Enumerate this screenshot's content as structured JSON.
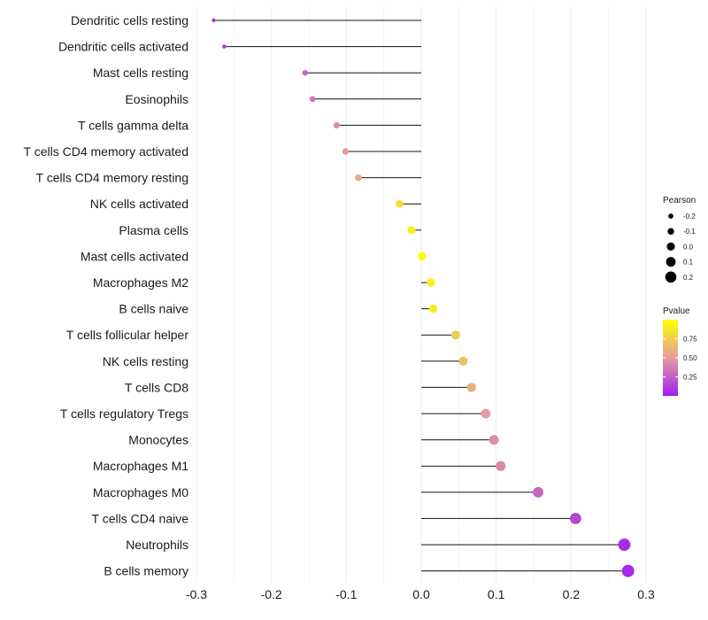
{
  "chart_data": {
    "type": "lollipop",
    "title": "",
    "xlabel": "",
    "ylabel": "",
    "xlim": [
      -0.3,
      0.3
    ],
    "x_ticks": [
      -0.3,
      -0.2,
      -0.1,
      0.0,
      0.1,
      0.2,
      0.3
    ],
    "x_tick_labels": [
      "-0.3",
      "-0.2",
      "-0.1",
      "0.0",
      "0.1",
      "0.2",
      "0.3"
    ],
    "grid": "vertical",
    "categories": [
      "Dendritic cells resting",
      "Dendritic cells activated",
      "Mast cells resting",
      "Eosinophils",
      "T cells gamma delta",
      "T cells CD4 memory activated",
      "T cells CD4 memory resting",
      "NK cells activated",
      "Plasma cells",
      "Mast cells activated",
      "Macrophages M2",
      "B cells naive",
      "T cells follicular helper",
      "NK cells resting",
      "T cells CD8",
      "T cells regulatory  Tregs ",
      "Monocytes",
      "Macrophages M1",
      "Macrophages M0",
      "T cells CD4 naive",
      "Neutrophils",
      "B cells memory"
    ],
    "series": [
      {
        "name": "Pearson",
        "values": [
          -0.277,
          -0.263,
          -0.155,
          -0.145,
          -0.113,
          -0.101,
          -0.084,
          -0.029,
          -0.013,
          0.001,
          0.013,
          0.016,
          0.046,
          0.056,
          0.067,
          0.086,
          0.097,
          0.106,
          0.156,
          0.206,
          0.271,
          0.276
        ]
      },
      {
        "name": "Pvalue",
        "values": [
          0.09,
          0.12,
          0.3,
          0.35,
          0.45,
          0.5,
          0.58,
          0.82,
          0.92,
          0.99,
          0.92,
          0.9,
          0.73,
          0.68,
          0.6,
          0.5,
          0.45,
          0.42,
          0.28,
          0.15,
          0.05,
          0.04
        ]
      }
    ],
    "legend": {
      "position": "right",
      "size_title": "Pearson",
      "size_values": [
        -0.2,
        -0.1,
        0.0,
        0.1,
        0.2
      ],
      "size_labels": [
        "-0.2",
        "-0.1",
        "0.0",
        "0.1",
        "0.2"
      ],
      "color_title": "Pvalue",
      "color_ticks": [
        0.25,
        0.5,
        0.75
      ],
      "color_tick_labels": [
        "0.25",
        "0.50",
        "0.75"
      ],
      "color_range": [
        0.0,
        1.0
      ],
      "color_low": "#a020f0",
      "color_mid": "#e49c9c",
      "color_high": "#ffff00"
    }
  }
}
